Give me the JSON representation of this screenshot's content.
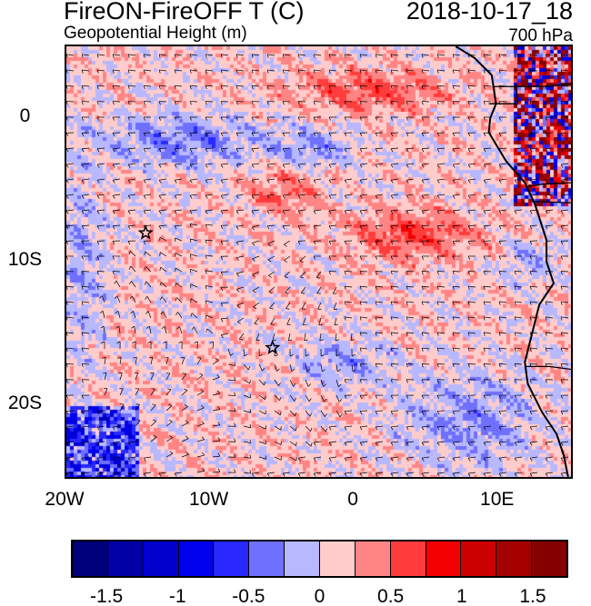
{
  "header": {
    "title": "FireON-FireOFF T (C)",
    "date": "2018-10-17_18",
    "subtitle": "Geopotential Height (m)",
    "level": "700 hPa"
  },
  "map": {
    "lon_range": [
      -20,
      15
    ],
    "lat_range": [
      -25,
      5
    ],
    "x_ticks": [
      {
        "value": -20,
        "label": "20W"
      },
      {
        "value": -10,
        "label": "10W"
      },
      {
        "value": 0,
        "label": "0"
      },
      {
        "value": 10,
        "label": "10E"
      }
    ],
    "y_ticks": [
      {
        "value": 0,
        "label": "0"
      },
      {
        "value": -10,
        "label": "10S"
      },
      {
        "value": -20,
        "label": "20S"
      }
    ],
    "markers": [
      {
        "symbol": "star",
        "lon": -14.5,
        "lat": -8
      },
      {
        "symbol": "star",
        "lon": -5.7,
        "lat": -16
      }
    ]
  },
  "colorbar": {
    "levels": [
      -1.75,
      -1.5,
      -1.25,
      -1,
      -0.75,
      -0.5,
      -0.25,
      0,
      0.25,
      0.5,
      0.75,
      1,
      1.25,
      1.5,
      1.75
    ],
    "colors": [
      "#00007A",
      "#0000A5",
      "#0000CD",
      "#0000EE",
      "#2828FF",
      "#7070FF",
      "#B8B8FF",
      "#FFCCCC",
      "#FF8585",
      "#FF3D3D",
      "#F50000",
      "#CD0000",
      "#A50000",
      "#850000"
    ],
    "labels": [
      {
        "value": -1.5,
        "label": "-1.5"
      },
      {
        "value": -1,
        "label": "-1"
      },
      {
        "value": -0.5,
        "label": "-0.5"
      },
      {
        "value": 0,
        "label": "0"
      },
      {
        "value": 0.5,
        "label": "0.5"
      },
      {
        "value": 1,
        "label": "1"
      },
      {
        "value": 1.5,
        "label": "1.5"
      }
    ]
  }
}
